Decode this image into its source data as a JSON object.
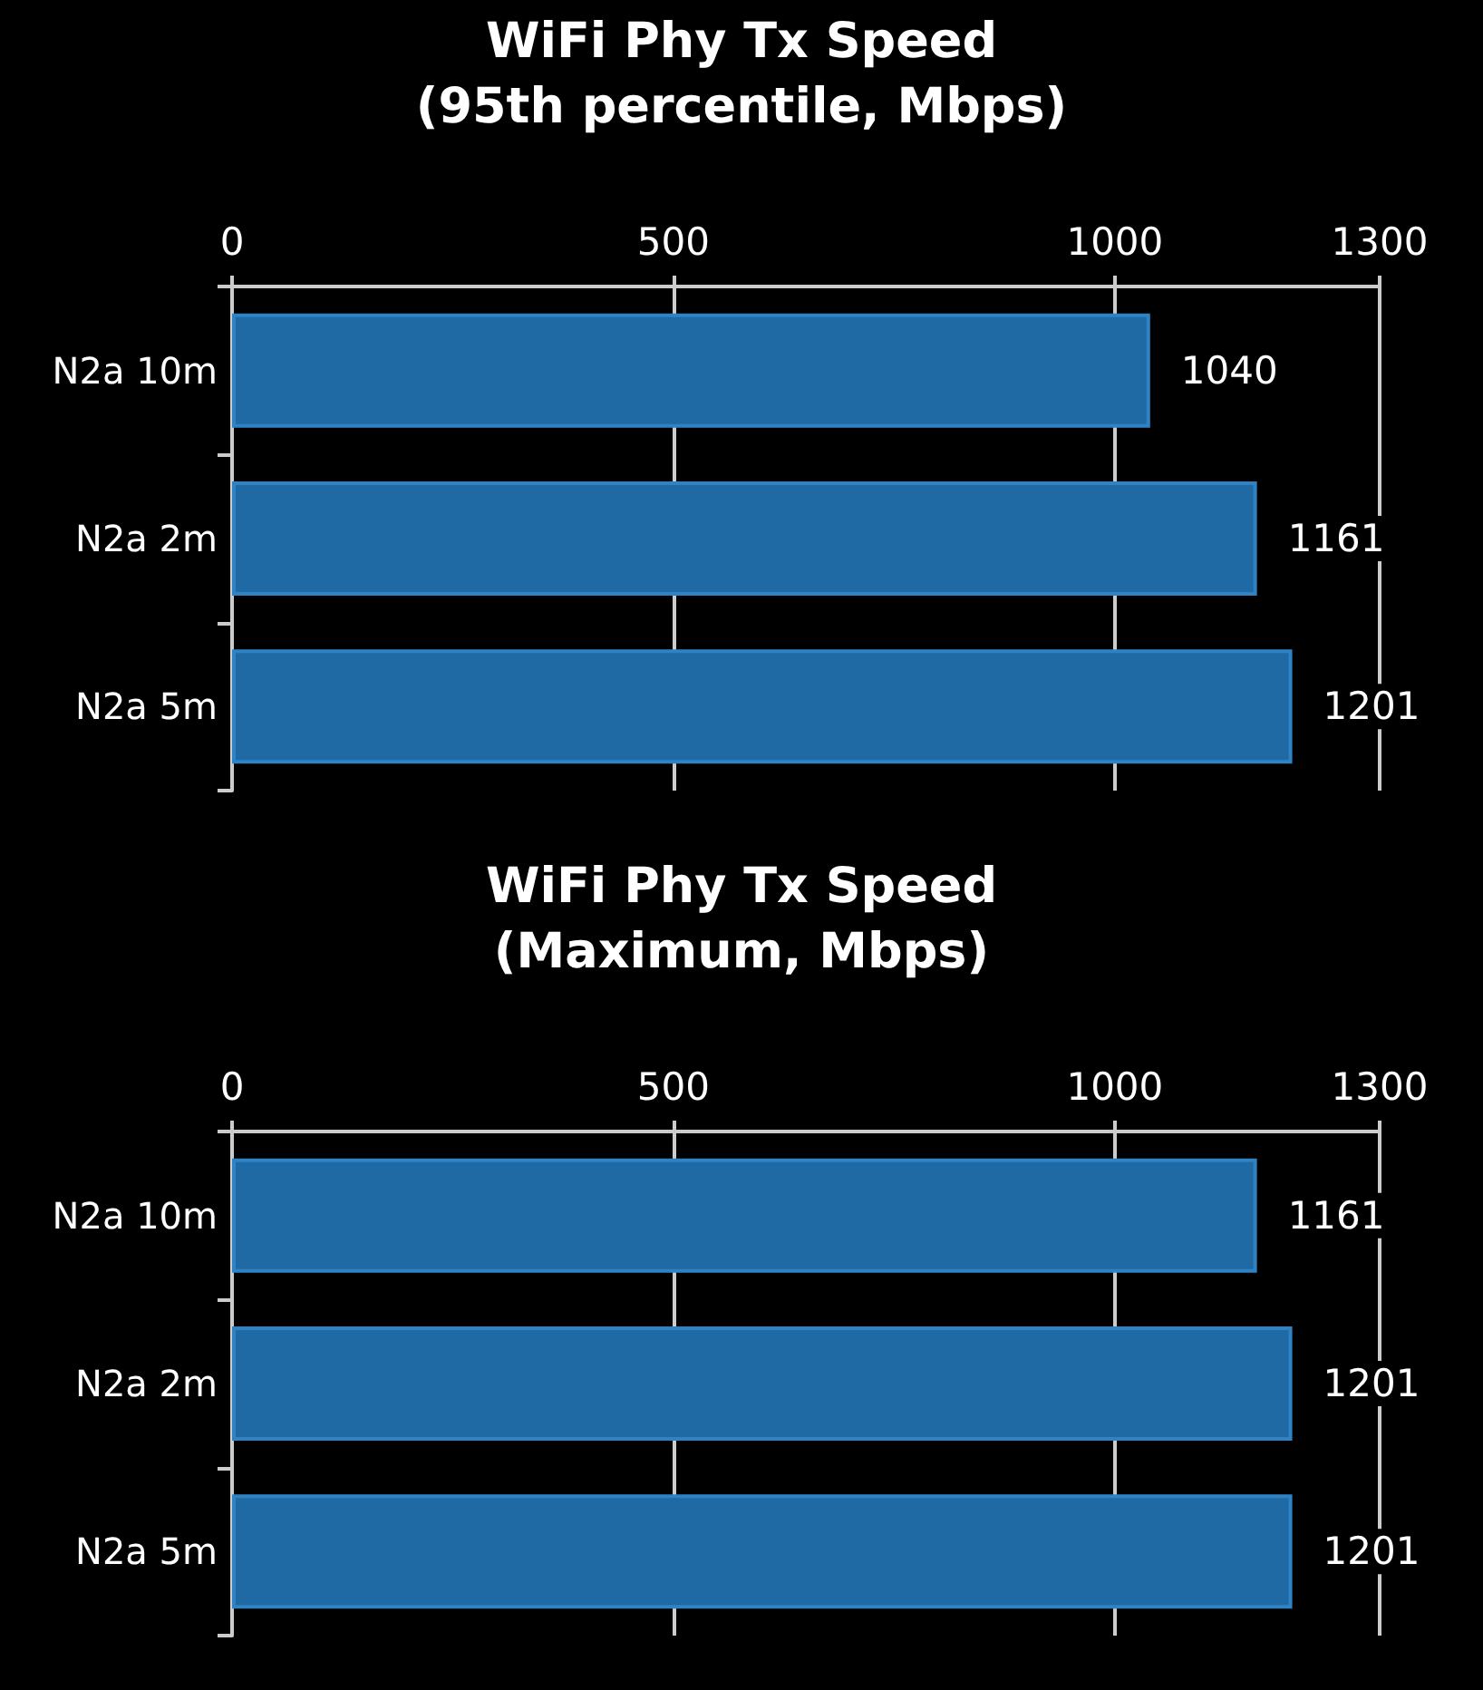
{
  "chart_data": [
    {
      "type": "bar",
      "orientation": "horizontal",
      "title": "WiFi Phy Tx Speed\n(95th percentile, Mbps)",
      "categories": [
        "N2a 10m",
        "N2a 2m",
        "N2a 5m"
      ],
      "values": [
        1040,
        1161,
        1201
      ],
      "color": "#1f6aa5",
      "xlim": [
        0,
        1300
      ],
      "xticks": [
        0,
        500,
        1000,
        1300
      ],
      "grid": "x",
      "data_labels": true
    },
    {
      "type": "bar",
      "orientation": "horizontal",
      "title": "WiFi Phy Tx Speed\n(Maximum, Mbps)",
      "categories": [
        "N2a 10m",
        "N2a 2m",
        "N2a 5m"
      ],
      "values": [
        1161,
        1201,
        1201
      ],
      "color": "#1f6aa5",
      "xlim": [
        0,
        1300
      ],
      "xticks": [
        0,
        500,
        1000,
        1300
      ],
      "grid": "x",
      "data_labels": true
    }
  ]
}
